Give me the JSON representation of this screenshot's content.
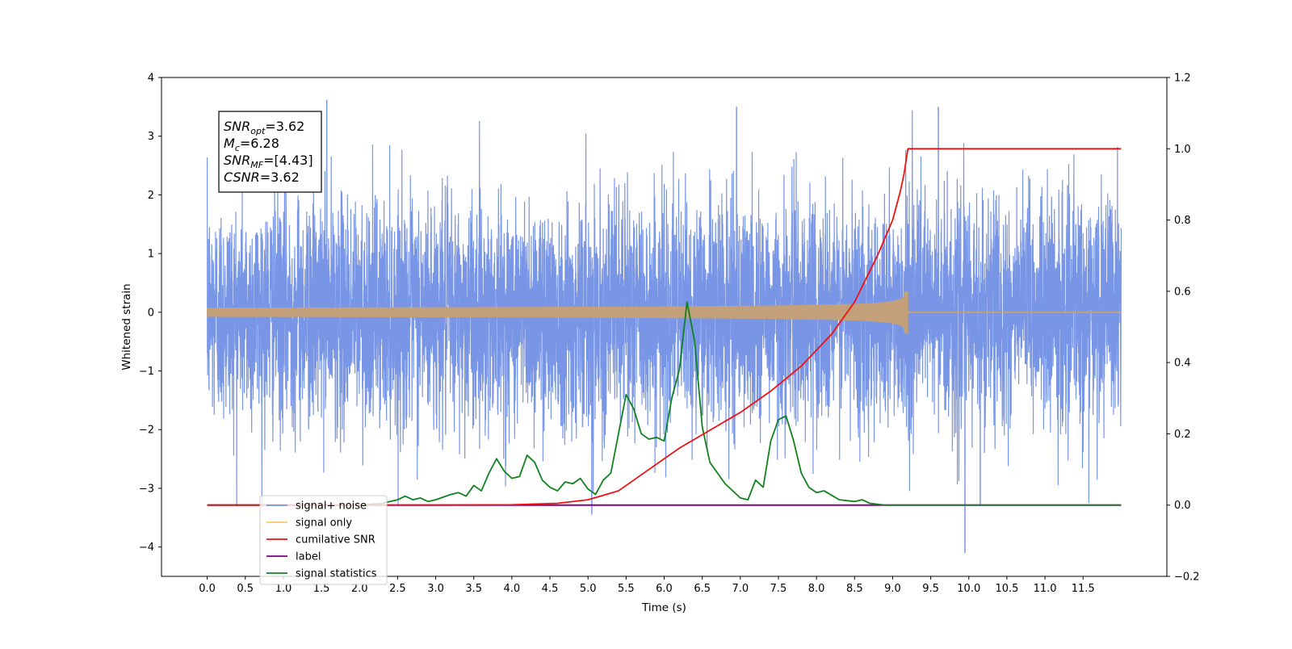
{
  "chart_data": {
    "type": "line",
    "xlabel": "Time (s)",
    "ylabel": "Whitened strain",
    "xlim": [
      -0.6,
      12.6
    ],
    "ylim_left": [
      -4.5,
      4.0
    ],
    "ylim_right": [
      -0.2,
      1.2
    ],
    "x_ticks": [
      "0.0",
      "0.5",
      "1.0",
      "1.5",
      "2.0",
      "2.5",
      "3.0",
      "3.5",
      "4.0",
      "4.5",
      "5.0",
      "5.5",
      "6.0",
      "6.5",
      "7.0",
      "7.5",
      "8.0",
      "8.5",
      "9.0",
      "9.5",
      "10.0",
      "10.5",
      "11.0",
      "11.5"
    ],
    "y_ticks_left": [
      "4",
      "3",
      "2",
      "1",
      "0",
      "−1",
      "−2",
      "−3",
      "−4"
    ],
    "y_ticks_right": [
      "1.2",
      "1.0",
      "0.8",
      "0.6",
      "0.4",
      "0.2",
      "0.0",
      "−0.2"
    ],
    "annotation": {
      "snr_opt": {
        "base": "SNR",
        "sub": "opt",
        "value": "=3.62"
      },
      "mc": {
        "base": "M",
        "sub": "c",
        "value": "=6.28"
      },
      "snr_mf": {
        "base": "SNR",
        "sub": "MF",
        "value": "=[4.43]"
      },
      "csnr": {
        "base": "CSNR",
        "sub": "",
        "value": "=3.62"
      }
    },
    "legend_position": "lower-left",
    "series": [
      {
        "name": "signal+ noise",
        "axis": "left",
        "color": "#7895e6",
        "description_values": {
          "t_start": 0.0,
          "t_end": 12.0,
          "sigma": 0.95,
          "peak_max": 3.62,
          "peak_min": -4.1
        }
      },
      {
        "name": "signal only",
        "axis": "left",
        "color": "#ffc864",
        "draw_color": "#c4a07a",
        "chirp": {
          "t_start": 0.0,
          "t_merger": 9.2,
          "t_end": 12.0,
          "amp_at_merger": 0.35
        }
      },
      {
        "name": "cumilative SNR",
        "axis": "right",
        "color": "#ee1111",
        "x": [
          0.0,
          3.0,
          4.0,
          4.6,
          5.0,
          5.4,
          5.8,
          6.2,
          6.6,
          7.0,
          7.4,
          7.8,
          8.2,
          8.5,
          8.8,
          9.0,
          9.1,
          9.15,
          9.2,
          9.5,
          12.0
        ],
        "y": [
          0.0,
          0.0,
          0.001,
          0.005,
          0.015,
          0.04,
          0.1,
          0.16,
          0.21,
          0.26,
          0.32,
          0.39,
          0.48,
          0.57,
          0.7,
          0.8,
          0.88,
          0.93,
          1.0,
          1.0,
          1.0
        ]
      },
      {
        "name": "label",
        "axis": "right",
        "color": "#800080",
        "x": [
          0.0,
          12.0
        ],
        "y": [
          0.0,
          0.0
        ]
      },
      {
        "name": "signal statistics",
        "axis": "right",
        "color": "#11821e",
        "x": [
          0.0,
          2.0,
          2.3,
          2.5,
          2.6,
          2.7,
          2.8,
          2.9,
          3.0,
          3.2,
          3.3,
          3.4,
          3.5,
          3.6,
          3.7,
          3.8,
          3.9,
          4.0,
          4.1,
          4.2,
          4.3,
          4.4,
          4.5,
          4.6,
          4.7,
          4.8,
          4.9,
          5.0,
          5.1,
          5.2,
          5.3,
          5.4,
          5.5,
          5.6,
          5.7,
          5.8,
          5.9,
          6.0,
          6.1,
          6.2,
          6.3,
          6.4,
          6.5,
          6.6,
          6.8,
          7.0,
          7.1,
          7.2,
          7.3,
          7.4,
          7.5,
          7.6,
          7.7,
          7.8,
          7.9,
          8.0,
          8.1,
          8.3,
          8.5,
          8.6,
          8.7,
          8.9,
          9.2,
          12.0
        ],
        "y": [
          0.0,
          0.0,
          0.005,
          0.015,
          0.025,
          0.015,
          0.02,
          0.01,
          0.015,
          0.03,
          0.035,
          0.025,
          0.055,
          0.04,
          0.09,
          0.13,
          0.095,
          0.075,
          0.08,
          0.14,
          0.12,
          0.07,
          0.05,
          0.04,
          0.065,
          0.06,
          0.075,
          0.045,
          0.03,
          0.07,
          0.09,
          0.2,
          0.31,
          0.27,
          0.2,
          0.185,
          0.19,
          0.18,
          0.3,
          0.38,
          0.57,
          0.46,
          0.22,
          0.12,
          0.06,
          0.02,
          0.015,
          0.07,
          0.05,
          0.18,
          0.24,
          0.25,
          0.18,
          0.09,
          0.05,
          0.035,
          0.04,
          0.015,
          0.01,
          0.015,
          0.005,
          0.0,
          0.0,
          0.0
        ]
      }
    ],
    "legend": [
      {
        "label": "signal+ noise",
        "color": "#7895e6"
      },
      {
        "label": "signal only",
        "color": "#ffc864"
      },
      {
        "label": "cumilative SNR",
        "color": "#ee1111"
      },
      {
        "label": "label",
        "color": "#800080"
      },
      {
        "label": "signal statistics",
        "color": "#11821e"
      }
    ]
  }
}
